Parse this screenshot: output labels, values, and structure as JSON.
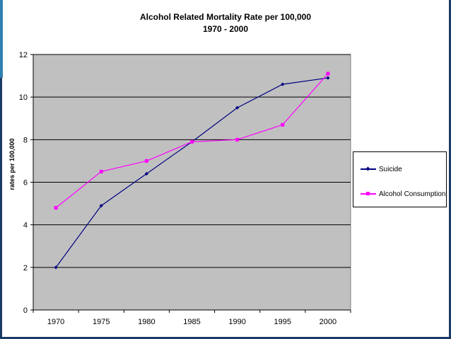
{
  "chart_data": {
    "type": "line",
    "title": "Alcohol Related Mortality Rate per 100,000",
    "subtitle": "1970 - 2000",
    "ylabel": "rates per 100,000",
    "xlabel": "",
    "x": [
      1970,
      1975,
      1980,
      1985,
      1990,
      1995,
      2000
    ],
    "x_tick_labels": [
      "1970",
      "1975",
      "1980",
      "1985",
      "1990",
      "1995",
      "2000"
    ],
    "ylim": [
      0,
      12
    ],
    "y_ticks": [
      0,
      2,
      4,
      6,
      8,
      10,
      12
    ],
    "grid": true,
    "legend_position": "right",
    "plot_background": "#c0c0c0",
    "series": [
      {
        "name": "Suicide",
        "color": "#000080",
        "marker": "diamond",
        "values": [
          2.0,
          4.9,
          6.4,
          7.9,
          9.5,
          10.6,
          10.9
        ]
      },
      {
        "name": "Alcohol Consumption",
        "color": "#ff00ff",
        "marker": "square",
        "values": [
          4.8,
          6.5,
          7.0,
          7.9,
          8.0,
          8.7,
          11.1
        ]
      }
    ]
  }
}
